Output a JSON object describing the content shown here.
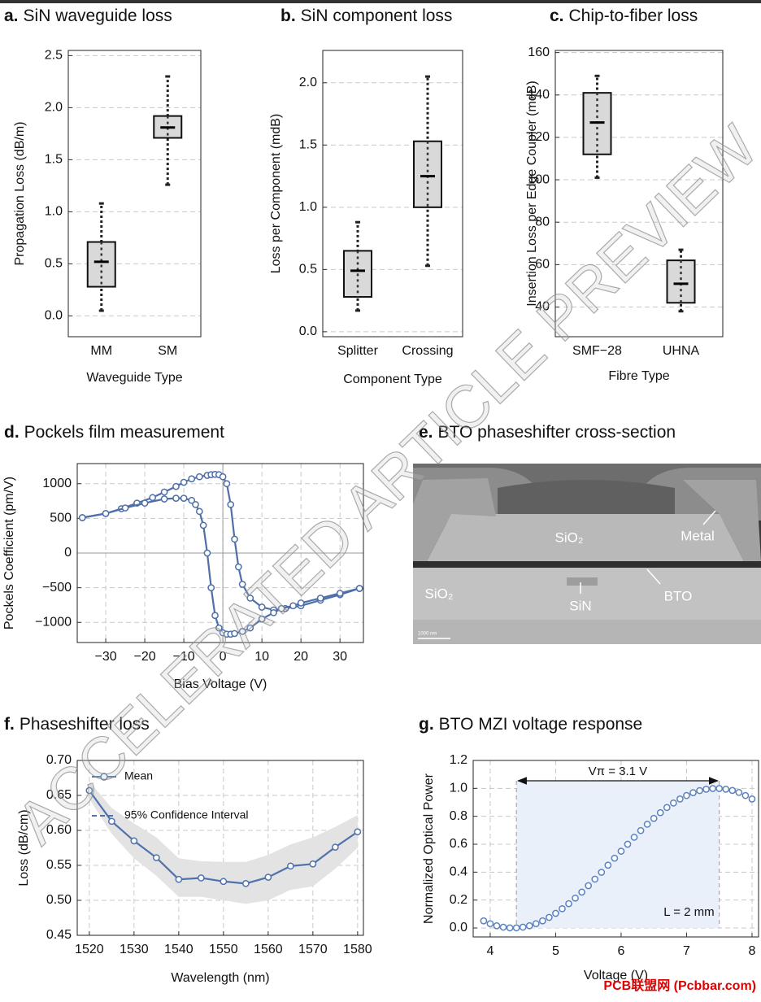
{
  "chart_data": [
    {
      "type": "box",
      "label": "a.",
      "title": "SiN waveguide loss",
      "ylabel": "Propagation Loss (dB/m)",
      "xlabel": "Waveguide Type",
      "categories": [
        "MM",
        "SM"
      ],
      "boxes": [
        {
          "min": 0.05,
          "q1": 0.28,
          "median": 0.52,
          "q3": 0.71,
          "max": 1.08
        },
        {
          "min": 1.26,
          "q1": 1.71,
          "median": 1.81,
          "q3": 1.92,
          "max": 2.3
        }
      ],
      "ylim": [
        -0.2,
        2.55
      ],
      "yticks": [
        {
          "value": 0,
          "label": "0.0"
        },
        0.5,
        {
          "value": 1,
          "label": "1.0"
        },
        1.5,
        {
          "value": 2,
          "label": "2.0"
        },
        2.5
      ],
      "grid": true
    },
    {
      "type": "box",
      "label": "b.",
      "title": "SiN component loss",
      "ylabel": "Loss per Component (mdB)",
      "xlabel": "Component Type",
      "categories": [
        "Splitter",
        "Crossing"
      ],
      "boxes": [
        {
          "min": 0.17,
          "q1": 0.28,
          "median": 0.49,
          "q3": 0.65,
          "max": 0.88
        },
        {
          "min": 0.53,
          "q1": 1.0,
          "median": 1.25,
          "q3": 1.53,
          "max": 2.05
        }
      ],
      "ylim": [
        -0.04,
        2.26
      ],
      "yticks": [
        {
          "value": 0,
          "label": "0.0"
        },
        0.5,
        {
          "value": 1,
          "label": "1.0"
        },
        1.5,
        {
          "value": 2,
          "label": "2.0"
        }
      ],
      "grid": true
    },
    {
      "type": "box",
      "label": "c.",
      "title": "Chip-to-fiber loss",
      "ylabel": "Insertion Loss per Edge Coupler (mdB)",
      "xlabel": "Fibre Type",
      "categories": [
        "SMF−28",
        "UHNA"
      ],
      "boxes": [
        {
          "min": 101,
          "q1": 112,
          "median": 127,
          "q3": 141,
          "max": 149
        },
        {
          "min": 38,
          "q1": 42,
          "median": 51,
          "q3": 62,
          "max": 67
        }
      ],
      "ylim": [
        26,
        161
      ],
      "yticks": [
        40,
        60,
        80,
        100,
        120,
        140,
        160
      ],
      "grid": true
    },
    {
      "type": "line",
      "label": "d.",
      "title": "Pockels film measurement",
      "ylabel": "Pockels Coefficient (pm/V)",
      "xlabel": "Bias Voltage (V)",
      "series": [
        {
          "color": "#4f6fa8",
          "x": [
            -36,
            -30,
            -26,
            -22,
            -18,
            -15,
            -12,
            -10,
            -8,
            -6,
            -4,
            -3,
            -2,
            -1,
            0,
            1,
            2,
            3,
            4,
            5,
            7,
            10,
            13,
            16,
            20,
            25,
            30,
            35
          ],
          "values": [
            510,
            570,
            640,
            720,
            800,
            880,
            960,
            1020,
            1070,
            1100,
            1120,
            1130,
            1135,
            1130,
            1100,
            1000,
            700,
            200,
            -200,
            -450,
            -650,
            -780,
            -820,
            -800,
            -760,
            -680,
            -600,
            -510
          ]
        },
        {
          "color": "#4f6fa8",
          "x": [
            -36,
            -30,
            -25,
            -20,
            -15,
            -12,
            -10,
            -8,
            -7,
            -6,
            -5,
            -4,
            -3,
            -2,
            -1,
            0,
            1,
            2,
            3,
            5,
            7,
            10,
            13,
            15,
            18,
            20,
            25,
            30,
            35
          ],
          "values": [
            510,
            570,
            650,
            720,
            780,
            790,
            790,
            760,
            700,
            600,
            400,
            0,
            -500,
            -900,
            -1080,
            -1150,
            -1170,
            -1170,
            -1160,
            -1130,
            -1080,
            -950,
            -860,
            -800,
            -760,
            -720,
            -650,
            -580,
            -510
          ]
        }
      ],
      "xlim": [
        -37.3,
        36
      ],
      "xticks": [
        {
          "value": -30,
          "label": "−30"
        },
        {
          "value": -20,
          "label": "−20"
        },
        {
          "value": -10,
          "label": "−10"
        },
        0,
        10,
        20,
        30
      ],
      "ylim": [
        -1290,
        1290
      ],
      "yticks": [
        {
          "value": -1000,
          "label": "−1000"
        },
        {
          "value": -500,
          "label": "−500"
        },
        0,
        500,
        1000
      ],
      "grid": true,
      "zero_lines": true
    },
    {
      "type": "line",
      "label": "f.",
      "title": "Phaseshifter loss",
      "ylabel": "Loss (dB/cm)",
      "xlabel": "Wavelength (nm)",
      "x": [
        1520,
        1525,
        1530,
        1535,
        1540,
        1545,
        1550,
        1555,
        1560,
        1565,
        1570,
        1575,
        1580
      ],
      "series": [
        {
          "name": "Mean",
          "color": "#4f72ad",
          "values": [
            0.657,
            0.613,
            0.585,
            0.561,
            0.53,
            0.532,
            0.527,
            0.524,
            0.533,
            0.549,
            0.552,
            0.576,
            0.598
          ]
        }
      ],
      "band": {
        "name": "95% Confidence Interval",
        "color": "#e3e3e3",
        "upper": [
          0.67,
          0.632,
          0.61,
          0.59,
          0.56,
          0.556,
          0.555,
          0.555,
          0.565,
          0.58,
          0.59,
          0.605,
          0.622
        ],
        "lower": [
          0.645,
          0.595,
          0.56,
          0.535,
          0.505,
          0.505,
          0.5,
          0.495,
          0.5,
          0.515,
          0.52,
          0.545,
          0.575
        ]
      },
      "xlim": [
        1517.3,
        1581.3
      ],
      "xticks": [
        1520,
        1530,
        1540,
        1550,
        1560,
        1570,
        1580
      ],
      "ylim": [
        0.45,
        0.7
      ],
      "yticks": [
        0.45,
        {
          "value": 0.5,
          "label": "0.50"
        },
        0.55,
        {
          "value": 0.6,
          "label": "0.60"
        },
        0.65,
        {
          "value": 0.7,
          "label": "0.70"
        }
      ],
      "grid": true,
      "legend": "upper left"
    },
    {
      "type": "scatter",
      "label": "g.",
      "title": "BTO MZI voltage response",
      "ylabel": "Normalized Optical Power",
      "xlabel": "Voltage (V)",
      "series": [
        {
          "color": "#5b82bf",
          "x": [
            3.9,
            4.0,
            4.1,
            4.2,
            4.3,
            4.4,
            4.5,
            4.6,
            4.7,
            4.8,
            4.9,
            5.0,
            5.1,
            5.2,
            5.3,
            5.4,
            5.5,
            5.6,
            5.7,
            5.8,
            5.9,
            6.0,
            6.1,
            6.2,
            6.3,
            6.4,
            6.5,
            6.6,
            6.7,
            6.8,
            6.9,
            7.0,
            7.1,
            7.2,
            7.3,
            7.4,
            7.5,
            7.6,
            7.7,
            7.8,
            7.9,
            8.0
          ],
          "values": [
            0.051,
            0.031,
            0.016,
            0.006,
            0.001,
            0.001,
            0.006,
            0.016,
            0.031,
            0.051,
            0.076,
            0.105,
            0.138,
            0.174,
            0.214,
            0.257,
            0.303,
            0.35,
            0.399,
            0.45,
            0.5,
            0.55,
            0.6,
            0.65,
            0.698,
            0.743,
            0.785,
            0.826,
            0.863,
            0.895,
            0.924,
            0.949,
            0.969,
            0.984,
            0.994,
            0.999,
            0.999,
            0.994,
            0.985,
            0.971,
            0.949,
            0.924
          ]
        }
      ],
      "shade_x": [
        4.4,
        7.5
      ],
      "annotations": [
        "Vπ = 3.1 V",
        "L = 2 mm"
      ],
      "xlim": [
        3.74,
        8.1
      ],
      "xticks": [
        4,
        5,
        6,
        7,
        8
      ],
      "ylim": [
        -0.064,
        1.2
      ],
      "yticks": [
        {
          "value": 0,
          "label": "0.0"
        },
        0.2,
        0.4,
        0.6,
        0.8,
        {
          "value": 1,
          "label": "1.0"
        },
        1.2
      ],
      "grid": true
    }
  ],
  "panel_e": {
    "label": "e.",
    "title": "BTO phaseshifter cross-section",
    "labels": [
      "SiO₂",
      "Metal",
      "SiO₂",
      "SiN",
      "BTO"
    ],
    "scale_bar": "1000 nm"
  },
  "watermark": "ACCELERATED ARTICLE PREVIEW",
  "footer": "PCB联盟网 (Pcbbar.com)"
}
